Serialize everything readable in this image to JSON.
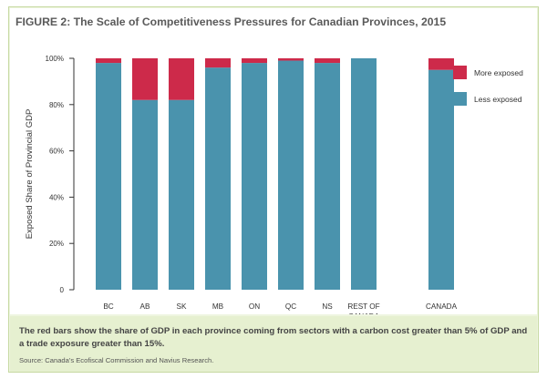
{
  "figure": {
    "title": "FIGURE 2: The Scale of Competitiveness Pressures for Canadian Provinces, 2015",
    "caption": "The red bars show the share of GDP in each province coming from sectors with a carbon cost greater than 5% of GDP and a trade exposure greater than 15%.",
    "source": "Source: Canada's Ecofiscal Commission and Navius Research."
  },
  "colors": {
    "more_exposed": "#cd2a4a",
    "less_exposed": "#4a93ad"
  },
  "chart_data": {
    "type": "bar",
    "stacked": true,
    "title": "FIGURE 2: The Scale of Competitiveness Pressures for Canadian Provinces, 2015",
    "xlabel": "",
    "ylabel": "Exposed Share of Provincial GDP",
    "ylim": [
      0,
      100
    ],
    "yticks": [
      0,
      20,
      40,
      60,
      80,
      100
    ],
    "ytick_labels": [
      "0",
      "20%",
      "40%",
      "60%",
      "80%",
      "100%"
    ],
    "categories": [
      "BC",
      "AB",
      "SK",
      "MB",
      "ON",
      "QC",
      "NS",
      "REST OF CANADA",
      "CANADA"
    ],
    "category_labels": [
      [
        "BC"
      ],
      [
        "AB"
      ],
      [
        "SK"
      ],
      [
        "MB"
      ],
      [
        "ON"
      ],
      [
        "QC"
      ],
      [
        "NS"
      ],
      [
        "REST OF",
        "CANADA"
      ],
      [
        "CANADA"
      ]
    ],
    "series": [
      {
        "name": "Less exposed",
        "values": [
          98,
          82,
          82,
          96,
          98,
          99,
          98,
          100,
          95
        ]
      },
      {
        "name": "More exposed",
        "values": [
          2,
          18,
          18,
          4,
          2,
          1,
          2,
          0,
          5
        ]
      }
    ],
    "legend": {
      "position": "top-right",
      "entries": [
        {
          "label": "More exposed",
          "series": "More exposed"
        },
        {
          "label": "Less exposed",
          "series": "Less exposed"
        }
      ]
    },
    "grid": false
  }
}
